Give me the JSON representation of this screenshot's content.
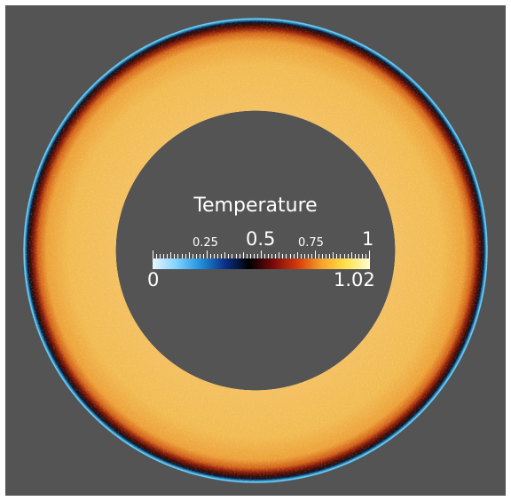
{
  "colorbar": {
    "title": "Temperature",
    "top_labels": [
      "0.25",
      "0.5",
      "0.75",
      "1"
    ],
    "bottom_left": "0",
    "bottom_right": "1.02",
    "gradient_stops": [
      "#e8f6ff",
      "#7fd2ff",
      "#1f8fd9",
      "#0c2f8a",
      "#000000",
      "#7a0a0a",
      "#d43b0a",
      "#f7a22a",
      "#ffe34a",
      "#fffbd6"
    ]
  },
  "colors": {
    "background": "#545454",
    "annulus_fill": "#f2bd55",
    "rim_dark": "#2a0a04",
    "rim_blue": "#1d8fc5"
  }
}
